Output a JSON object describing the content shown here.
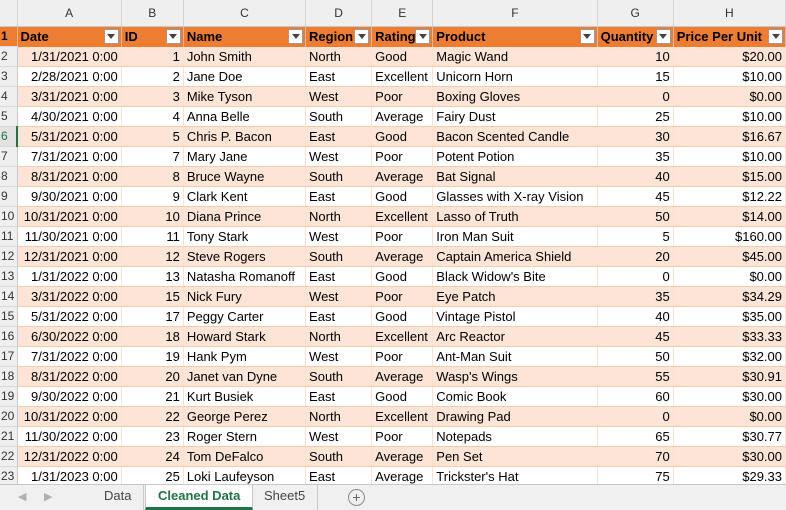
{
  "columns": [
    "A",
    "B",
    "C",
    "D",
    "E",
    "F",
    "G",
    "H"
  ],
  "header": [
    "Date",
    "ID",
    "Name",
    "Region",
    "Rating",
    "Product",
    "Quantity",
    "Price Per Unit"
  ],
  "rows": [
    [
      "1/31/2021 0:00",
      "1",
      "John Smith",
      "North",
      "Good",
      "Magic Wand",
      "10",
      "$20.00"
    ],
    [
      "2/28/2021 0:00",
      "2",
      "Jane Doe",
      "East",
      "Excellent",
      "Unicorn Horn",
      "15",
      "$10.00"
    ],
    [
      "3/31/2021 0:00",
      "3",
      "Mike Tyson",
      "West",
      "Poor",
      "Boxing Gloves",
      "0",
      "$0.00"
    ],
    [
      "4/30/2021 0:00",
      "4",
      "Anna Belle",
      "South",
      "Average",
      "Fairy Dust",
      "25",
      "$10.00"
    ],
    [
      "5/31/2021 0:00",
      "5",
      "Chris P. Bacon",
      "East",
      "Good",
      "Bacon Scented Candle",
      "30",
      "$16.67"
    ],
    [
      "7/31/2021 0:00",
      "7",
      "Mary Jane",
      "West",
      "Poor",
      "Potent Potion",
      "35",
      "$10.00"
    ],
    [
      "8/31/2021 0:00",
      "8",
      "Bruce Wayne",
      "South",
      "Average",
      "Bat Signal",
      "40",
      "$15.00"
    ],
    [
      "9/30/2021 0:00",
      "9",
      "Clark Kent",
      "East",
      "Good",
      "Glasses with X-ray Vision",
      "45",
      "$12.22"
    ],
    [
      "10/31/2021 0:00",
      "10",
      "Diana Prince",
      "North",
      "Excellent",
      "Lasso of Truth",
      "50",
      "$14.00"
    ],
    [
      "11/30/2021 0:00",
      "11",
      "Tony Stark",
      "West",
      "Poor",
      "Iron Man Suit",
      "5",
      "$160.00"
    ],
    [
      "12/31/2021 0:00",
      "12",
      "Steve Rogers",
      "South",
      "Average",
      "Captain America Shield",
      "20",
      "$45.00"
    ],
    [
      "1/31/2022 0:00",
      "13",
      "Natasha Romanoff",
      "East",
      "Good",
      "Black Widow's Bite",
      "0",
      "$0.00"
    ],
    [
      "3/31/2022 0:00",
      "15",
      "Nick Fury",
      "West",
      "Poor",
      "Eye Patch",
      "35",
      "$34.29"
    ],
    [
      "5/31/2022 0:00",
      "17",
      "Peggy Carter",
      "East",
      "Good",
      "Vintage Pistol",
      "40",
      "$35.00"
    ],
    [
      "6/30/2022 0:00",
      "18",
      "Howard Stark",
      "North",
      "Excellent",
      "Arc Reactor",
      "45",
      "$33.33"
    ],
    [
      "7/31/2022 0:00",
      "19",
      "Hank Pym",
      "West",
      "Poor",
      "Ant-Man Suit",
      "50",
      "$32.00"
    ],
    [
      "8/31/2022 0:00",
      "20",
      "Janet van Dyne",
      "South",
      "Average",
      "Wasp's Wings",
      "55",
      "$30.91"
    ],
    [
      "9/30/2022 0:00",
      "21",
      "Kurt Busiek",
      "East",
      "Good",
      "Comic Book",
      "60",
      "$30.00"
    ],
    [
      "10/31/2022 0:00",
      "22",
      "George Perez",
      "North",
      "Excellent",
      "Drawing Pad",
      "0",
      "$0.00"
    ],
    [
      "11/30/2022 0:00",
      "23",
      "Roger Stern",
      "West",
      "Poor",
      "Notepads",
      "65",
      "$30.77"
    ],
    [
      "12/31/2022 0:00",
      "24",
      "Tom DeFalco",
      "South",
      "Average",
      "Pen Set",
      "70",
      "$30.00"
    ],
    [
      "1/31/2023 0:00",
      "25",
      "Loki Laufeyson",
      "East",
      "Average",
      "Trickster's Hat",
      "75",
      "$29.33"
    ]
  ],
  "tabs": {
    "nav_prev": "◀",
    "nav_next": "▶",
    "sheets": [
      "Data",
      "Cleaned Data",
      "Sheet5"
    ],
    "add_sheet": "+"
  },
  "colors": {
    "header_fill": "#ed7d31",
    "band_fill": "#fce4d6",
    "active_tab": "#217346"
  }
}
